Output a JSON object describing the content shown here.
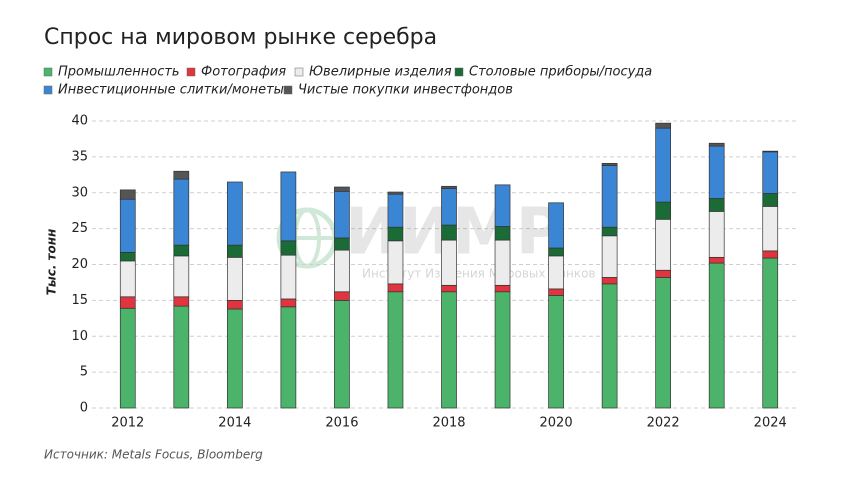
{
  "chart_data": {
    "type": "bar",
    "stacked": true,
    "title": "Спрос на мировом рынке серебра",
    "ylabel": "Тыс. тонн",
    "source": "Источник: Metals Focus, Bloomberg",
    "watermark": {
      "logo": "ИИМР",
      "text": "Институт Изучения Мировых Рынков"
    },
    "categories": [
      "2012",
      null,
      "2014",
      null,
      "2016",
      null,
      "2018",
      null,
      "2020",
      null,
      "2022",
      null,
      "2024"
    ],
    "series": [
      {
        "name": "Промышленность",
        "color": "#4cb46a",
        "values": [
          13.9,
          14.2,
          13.8,
          14.1,
          15.0,
          16.2,
          16.2,
          16.2,
          15.7,
          17.3,
          18.2,
          20.2,
          20.9
        ]
      },
      {
        "name": "Фотография",
        "color": "#e0353f",
        "values": [
          1.6,
          1.3,
          1.2,
          1.1,
          1.2,
          1.1,
          0.9,
          0.9,
          0.9,
          0.9,
          1.0,
          0.8,
          1.0
        ]
      },
      {
        "name": "Ювелирные изделия",
        "color": "#ececec",
        "values": [
          5.0,
          5.7,
          6.0,
          6.1,
          5.8,
          6.0,
          6.3,
          6.3,
          4.6,
          5.8,
          7.1,
          6.4,
          6.2
        ]
      },
      {
        "name": "Столовые приборы/посуда",
        "color": "#1a6b35",
        "values": [
          1.2,
          1.5,
          1.7,
          2.0,
          1.7,
          1.9,
          2.1,
          1.9,
          1.1,
          1.2,
          2.4,
          1.8,
          1.8
        ]
      },
      {
        "name": "Инвестиционные слитки/монеты",
        "color": "#3b86d4",
        "values": [
          7.4,
          9.2,
          8.8,
          9.6,
          6.5,
          4.6,
          5.1,
          5.8,
          6.3,
          8.6,
          10.3,
          7.3,
          5.8
        ]
      },
      {
        "name": "Чистые покупки инвестфондов",
        "color": "#555555",
        "values": [
          1.3,
          1.1,
          0,
          0,
          0.6,
          0.3,
          0.3,
          0,
          0,
          0.3,
          0.7,
          0.4,
          0.1
        ]
      }
    ],
    "ylim": [
      0,
      40
    ],
    "yticks": [
      0,
      5,
      10,
      15,
      20,
      25,
      30,
      35,
      40
    ],
    "grid": true
  }
}
